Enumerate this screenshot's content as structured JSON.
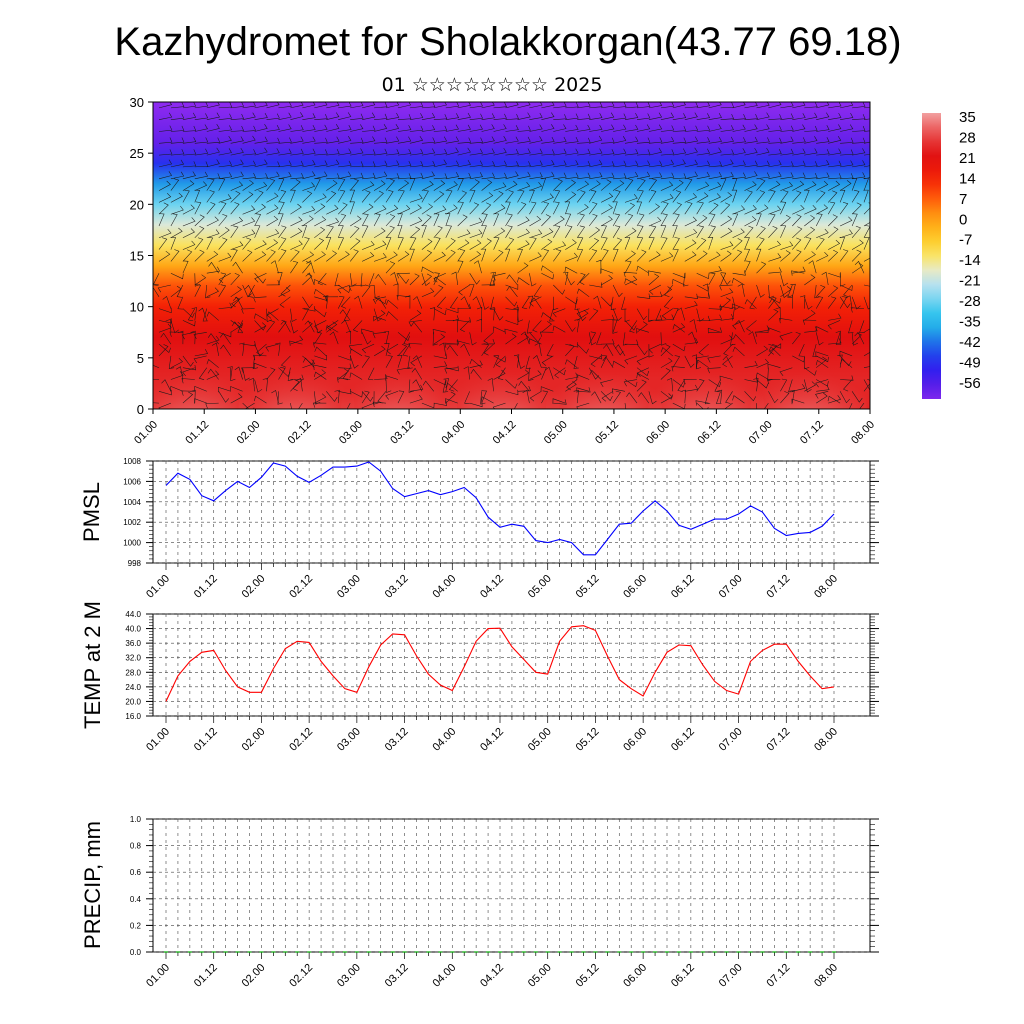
{
  "header": {
    "title": "Kazhydromet for Sholakkorgan(43.77 69.18)",
    "subtitle": "01 ☆☆☆☆☆☆☆☆ 2025"
  },
  "time_ticks": [
    "01.00",
    "01.12",
    "02.00",
    "02.12",
    "03.00",
    "03.12",
    "04.00",
    "04.12",
    "05.00",
    "05.12",
    "06.00",
    "06.12",
    "07.00",
    "07.12",
    "08.00"
  ],
  "colorbar": {
    "labels": [
      "35",
      "28",
      "21",
      "14",
      "7",
      "0",
      "-7",
      "-14",
      "-21",
      "-28",
      "-35",
      "-42",
      "-49",
      "-56"
    ]
  },
  "chart_data": [
    {
      "type": "heatmap",
      "id": "cross-section",
      "ylim": [
        0,
        30
      ],
      "yticks": [
        0,
        5,
        10,
        15,
        20,
        25,
        30
      ],
      "ytick_labels": [
        "0",
        "5",
        "10",
        "15",
        "20",
        "25",
        "30"
      ],
      "x_categories": [
        "01.00",
        "01.12",
        "02.00",
        "02.12",
        "03.00",
        "03.12",
        "04.00",
        "04.12",
        "05.00",
        "05.12",
        "06.00",
        "06.12",
        "07.00",
        "07.12",
        "08.00"
      ],
      "color_range": [
        -56,
        35
      ],
      "vertical_profile_temperature": [
        {
          "level": 0,
          "value": 24
        },
        {
          "level": 3,
          "value": 24
        },
        {
          "level": 7,
          "value": 21
        },
        {
          "level": 10,
          "value": 14
        },
        {
          "level": 12,
          "value": 9
        },
        {
          "level": 14,
          "value": 0
        },
        {
          "level": 16,
          "value": -10
        },
        {
          "level": 18,
          "value": -16
        },
        {
          "level": 20,
          "value": -25
        },
        {
          "level": 22,
          "value": -35
        },
        {
          "level": 24,
          "value": -44
        },
        {
          "level": 26,
          "value": -53
        },
        {
          "level": 30,
          "value": -58
        }
      ],
      "overlay": "wind barbs"
    },
    {
      "type": "line",
      "id": "pmsl",
      "ylabel": "PMSL",
      "ylim": [
        998,
        1008
      ],
      "yticks": [
        998,
        1000,
        1002,
        1004,
        1006,
        1008
      ],
      "ytick_labels": [
        "998",
        "1000",
        "1002",
        "1004",
        "1006",
        "1008"
      ],
      "x_start_index": 0,
      "x_step_hours": 3,
      "series": [
        {
          "color": "#0000ff",
          "values": [
            1005.6,
            1006.8,
            1006.2,
            1004.6,
            1004.1,
            1005.1,
            1006.0,
            1005.4,
            1006.4,
            1007.8,
            1007.5,
            1006.5,
            1005.9,
            1006.6,
            1007.4,
            1007.4,
            1007.5,
            1007.9,
            1007.0,
            1005.3,
            1004.5,
            1004.8,
            1005.1,
            1004.7,
            1005.0,
            1005.4,
            1004.4,
            1002.5,
            1001.5,
            1001.8,
            1001.6,
            1000.2,
            1000.0,
            1000.3,
            1000.0,
            998.8,
            998.8,
            1000.3,
            1001.8,
            1001.9,
            1003.1,
            1004.1,
            1003.1,
            1001.7,
            1001.3,
            1001.8,
            1002.3,
            1002.3,
            1002.8,
            1003.6,
            1003.0,
            1001.4,
            1000.7,
            1000.9,
            1001.0,
            1001.6,
            1002.8
          ]
        }
      ]
    },
    {
      "type": "line",
      "id": "temp2m",
      "ylabel": "TEMP at 2 M",
      "ylim": [
        16,
        44
      ],
      "yticks": [
        16,
        20,
        24,
        28,
        32,
        36,
        40,
        44
      ],
      "ytick_labels": [
        "16.0",
        "20.0",
        "24.0",
        "28.0",
        "32.0",
        "36.0",
        "40.0",
        "44.0"
      ],
      "x_start_index": 0,
      "x_step_hours": 3,
      "series": [
        {
          "color": "#ff0000",
          "values": [
            20.0,
            27.0,
            31.0,
            33.5,
            34.0,
            28.5,
            24.0,
            22.5,
            22.5,
            29.0,
            34.5,
            36.5,
            36.2,
            31.0,
            27.0,
            23.5,
            22.5,
            29.5,
            35.5,
            38.5,
            38.3,
            32.5,
            27.5,
            24.5,
            23.0,
            29.5,
            36.5,
            40.0,
            40.1,
            35.0,
            31.5,
            28.0,
            27.5,
            36.5,
            40.5,
            40.8,
            39.5,
            32.5,
            26.0,
            23.5,
            21.5,
            28.0,
            33.5,
            35.5,
            35.3,
            30.0,
            25.5,
            23.0,
            22.0,
            31.0,
            34.0,
            35.7,
            35.7,
            31.0,
            27.0,
            23.5,
            24.0
          ]
        }
      ]
    },
    {
      "type": "bar",
      "id": "precip",
      "ylabel": "PRECIP, mm",
      "ylim": [
        0.0,
        1.0
      ],
      "yticks": [
        0.0,
        0.2,
        0.4,
        0.6,
        0.8,
        1.0
      ],
      "ytick_labels": [
        "0.0",
        "0.2",
        "0.4",
        "0.6",
        "0.8",
        "1.0"
      ],
      "series": [
        {
          "color": "#00aa00",
          "values": [
            0,
            0,
            0,
            0,
            0,
            0,
            0,
            0,
            0,
            0,
            0,
            0,
            0,
            0,
            0,
            0,
            0,
            0,
            0,
            0,
            0,
            0,
            0,
            0,
            0,
            0,
            0,
            0,
            0,
            0,
            0,
            0,
            0,
            0,
            0,
            0,
            0,
            0,
            0,
            0,
            0,
            0,
            0,
            0,
            0,
            0,
            0,
            0,
            0,
            0,
            0,
            0,
            0,
            0,
            0,
            0,
            0
          ]
        }
      ]
    }
  ]
}
